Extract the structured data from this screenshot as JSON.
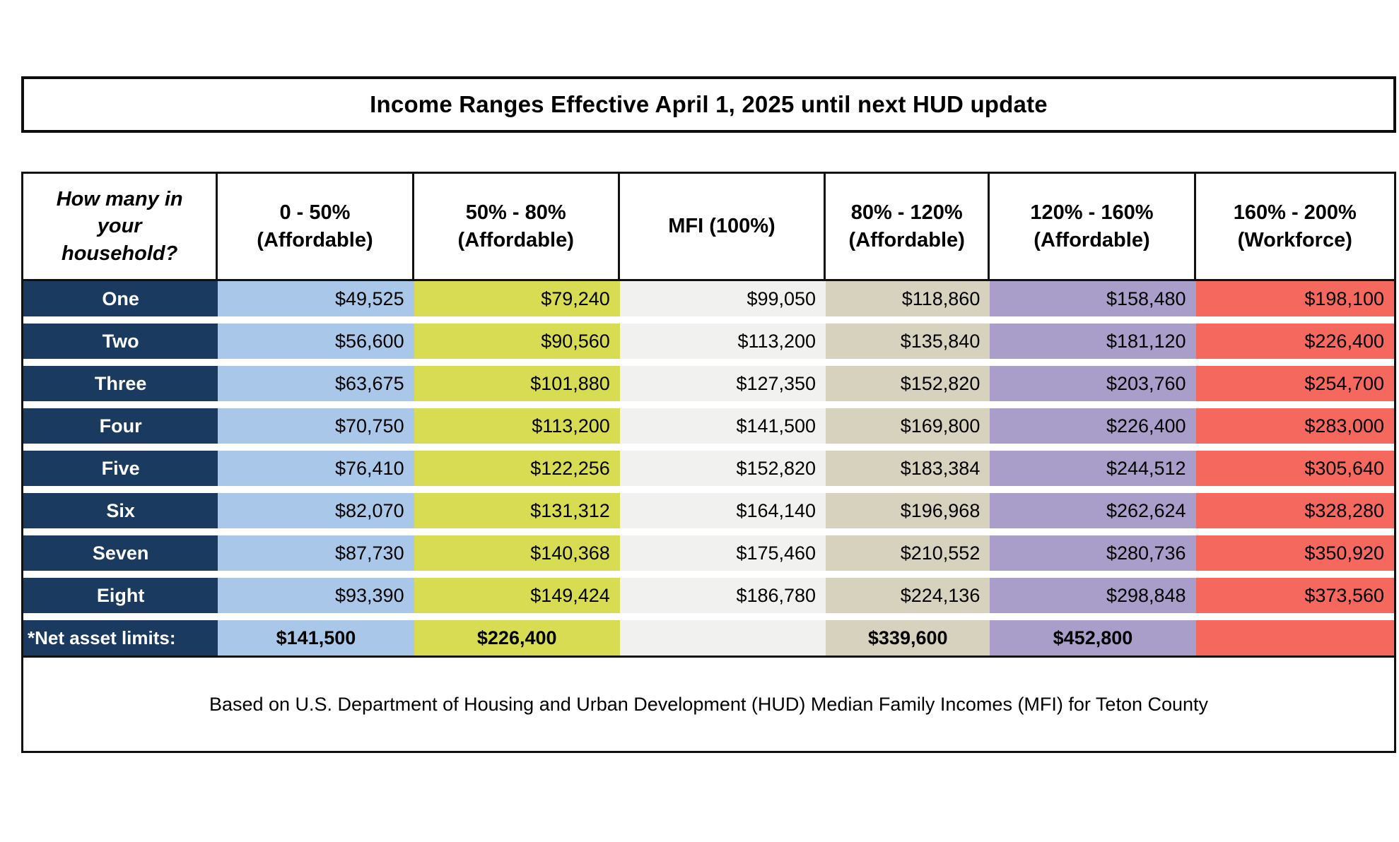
{
  "title": "Income Ranges Effective April 1, 2025 until next HUD update",
  "footer": "Based on U.S. Department of Housing and Urban Development (HUD) Median Family Incomes (MFI) for Teton County",
  "colors": {
    "row_label_bg": "#1A3A5F",
    "row_label_text": "#FFFFFF",
    "columns": [
      "#A9C7E8",
      "#D7DC52",
      "#F1F1EF",
      "#D6D2BD",
      "#A99DC9",
      "#F4685E"
    ],
    "border": "#111111",
    "background": "#FFFFFF"
  },
  "table": {
    "columns": [
      {
        "lines": [
          "How many in",
          "your",
          "household?"
        ]
      },
      {
        "lines": [
          "0 - 50%",
          "(Affordable)"
        ]
      },
      {
        "lines": [
          "50% - 80%",
          "(Affordable)"
        ]
      },
      {
        "lines": [
          "MFI (100%)"
        ]
      },
      {
        "lines": [
          "80% - 120%",
          "(Affordable)"
        ]
      },
      {
        "lines": [
          "120% - 160%",
          "(Affordable)"
        ]
      },
      {
        "lines": [
          "160% - 200%",
          "(Workforce)"
        ]
      }
    ],
    "rows": [
      {
        "label": "One",
        "values": [
          "$49,525",
          "$79,240",
          "$99,050",
          "$118,860",
          "$158,480",
          "$198,100"
        ]
      },
      {
        "label": "Two",
        "values": [
          "$56,600",
          "$90,560",
          "$113,200",
          "$135,840",
          "$181,120",
          "$226,400"
        ]
      },
      {
        "label": "Three",
        "values": [
          "$63,675",
          "$101,880",
          "$127,350",
          "$152,820",
          "$203,760",
          "$254,700"
        ]
      },
      {
        "label": "Four",
        "values": [
          "$70,750",
          "$113,200",
          "$141,500",
          "$169,800",
          "$226,400",
          "$283,000"
        ]
      },
      {
        "label": "Five",
        "values": [
          "$76,410",
          "$122,256",
          "$152,820",
          "$183,384",
          "$244,512",
          "$305,640"
        ]
      },
      {
        "label": "Six",
        "values": [
          "$82,070",
          "$131,312",
          "$164,140",
          "$196,968",
          "$262,624",
          "$328,280"
        ]
      },
      {
        "label": "Seven",
        "values": [
          "$87,730",
          "$140,368",
          "$175,460",
          "$210,552",
          "$280,736",
          "$350,920"
        ]
      },
      {
        "label": "Eight",
        "values": [
          "$93,390",
          "$149,424",
          "$186,780",
          "$224,136",
          "$298,848",
          "$373,560"
        ]
      }
    ],
    "net_asset_row": {
      "label": "*Net asset limits:",
      "values": [
        "$141,500",
        "$226,400",
        "",
        "$339,600",
        "$452,800",
        ""
      ]
    }
  }
}
